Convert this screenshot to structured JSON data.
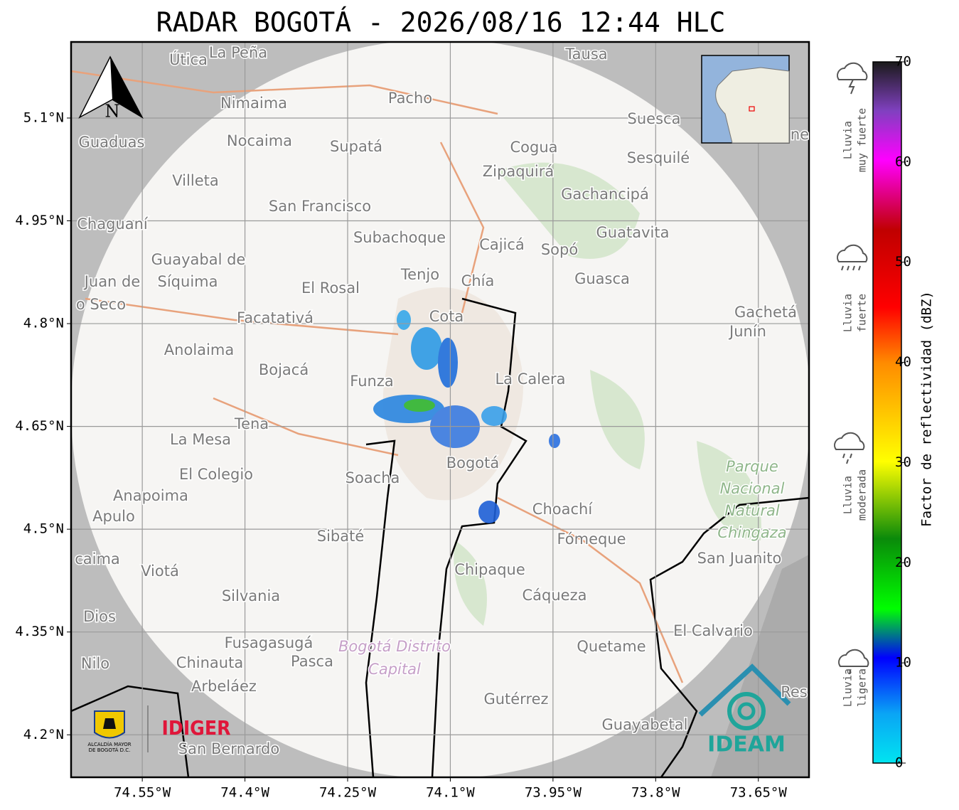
{
  "title": "RADAR BOGOTÁ - 2026/08/16 12:44 HLC",
  "map": {
    "xlim": [
      -74.654,
      -73.576
    ],
    "ylim": [
      4.138,
      5.211
    ],
    "xticks": [
      {
        "value": -74.55,
        "label": "74.55°W"
      },
      {
        "value": -74.4,
        "label": "74.4°W"
      },
      {
        "value": -74.25,
        "label": "74.25°W"
      },
      {
        "value": -74.1,
        "label": "74.1°W"
      },
      {
        "value": -73.95,
        "label": "73.95°W"
      },
      {
        "value": -73.8,
        "label": "73.8°W"
      },
      {
        "value": -73.65,
        "label": "73.65°W"
      }
    ],
    "yticks": [
      {
        "value": 5.1,
        "label": "5.1°N"
      },
      {
        "value": 4.95,
        "label": "4.95°N"
      },
      {
        "value": 4.8,
        "label": "4.8°N"
      },
      {
        "value": 4.65,
        "label": "4.65°N"
      },
      {
        "value": 4.5,
        "label": "4.5°N"
      },
      {
        "value": 4.35,
        "label": "4.35°N"
      },
      {
        "value": 4.2,
        "label": "4.2°N"
      }
    ],
    "north_label": "N",
    "places": [
      "Útica",
      "La Peña",
      "Tausa",
      "Pacho",
      "Nimaima",
      "Suesca",
      "Guaduas",
      "Nocaima",
      "Supatá",
      "Cogua",
      "Sesquilé",
      "Zipaquirá",
      "Villeta",
      "Gachancipá",
      "San Francisco",
      "Chaguaní",
      "Guatavita",
      "Subachoque",
      "Cajicá",
      "Sopó",
      "Guayabal de",
      "Síquima",
      "Juan de",
      "Tenjo",
      "Chía",
      "Guasca",
      "El Rosal",
      "o Seco",
      "Facatativá",
      "Cota",
      "Gachetá",
      "Junín",
      "Anolaima",
      "Bojacá",
      "Funza",
      "La Calera",
      "Tena",
      "La Mesa",
      "Soacha",
      "Bogotá",
      "El Colegio",
      "Anapoima",
      "Apulo",
      "Choachí",
      "Sibaté",
      "Fómeque",
      "San Juanito",
      "caima",
      "Viotá",
      "Chipaque",
      "Silvania",
      "Cáqueza",
      "Dios",
      "El Calvario",
      "Fusagasugá",
      "Quetame",
      "Nilo",
      "Chinauta",
      "Pasca",
      "Arbeláez",
      "Res",
      "Gutérrez",
      "Guayabetal",
      "San Bernardo",
      "ne"
    ],
    "park": [
      "Parque",
      "Nacional",
      "Natural",
      "Chingaza"
    ],
    "district": [
      "Bogotá Distrito",
      "Capital"
    ]
  },
  "logos": {
    "alcaldia": [
      "ALCALDÍA MAYOR",
      "DE BOGOTÁ D.C."
    ],
    "idiger": "IDIGER",
    "ideam": "IDEAM"
  },
  "colorbar": {
    "label": "Factor de reflectividad (dBZ)",
    "lim": [
      0,
      70
    ],
    "ticks": [
      0,
      10,
      20,
      30,
      40,
      50,
      60,
      70
    ],
    "categories": [
      [
        "Lluvia",
        "muy fuerte"
      ],
      [
        "Lluvia",
        "fuerte"
      ],
      [
        "Lluvia",
        "moderada"
      ],
      [
        "Lluvia",
        "ligera"
      ]
    ]
  }
}
